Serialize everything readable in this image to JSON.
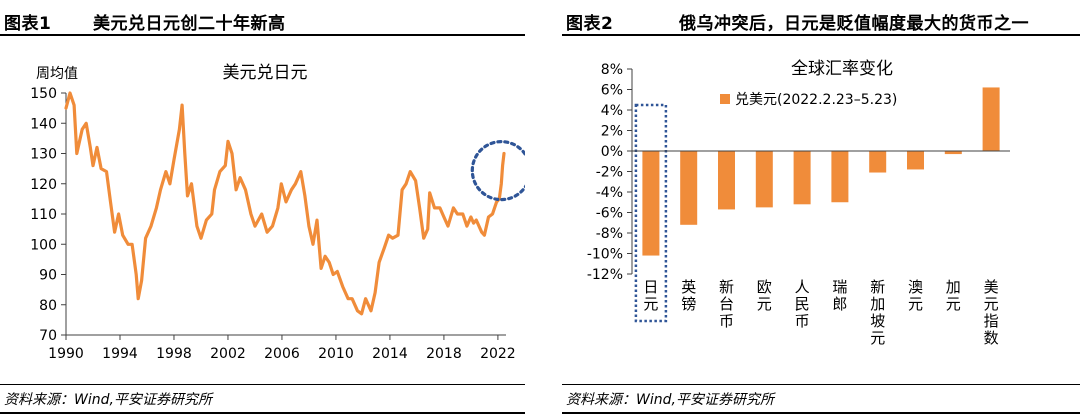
{
  "panel1": {
    "label": "图表1",
    "title": "美元兑日元创二十年新高",
    "source": "资料来源：Wind,平安证券研究所"
  },
  "panel2": {
    "label": "图表2",
    "title": "俄乌冲突后，日元是贬值幅度最大的货币之一",
    "source": "资料来源：Wind,平安证券研究所"
  },
  "colors": {
    "series": "#f08c3a",
    "highlight": "#2f5597",
    "axis": "#404040",
    "text": "#000000"
  },
  "chart_data": [
    {
      "type": "line",
      "title": "美元兑日元",
      "ylabel": "周均值",
      "xlabel": "",
      "xlim": [
        1990,
        2022.6
      ],
      "ylim": [
        70,
        150
      ],
      "xticks": [
        "1990",
        "1994",
        "1998",
        "2002",
        "2006",
        "2010",
        "2014",
        "2018",
        "2022"
      ],
      "yticks": [
        "70",
        "80",
        "90",
        "100",
        "110",
        "120",
        "130",
        "140",
        "150"
      ],
      "grid": false,
      "annotation": {
        "type": "dotted-circle",
        "x": 2022.4,
        "y": 126
      },
      "series": [
        {
          "points": [
            [
              1990.0,
              145
            ],
            [
              1990.3,
              150
            ],
            [
              1990.6,
              146
            ],
            [
              1990.8,
              130
            ],
            [
              1991.0,
              134
            ],
            [
              1991.2,
              138
            ],
            [
              1991.5,
              140
            ],
            [
              1991.8,
              132
            ],
            [
              1992.0,
              126
            ],
            [
              1992.3,
              132
            ],
            [
              1992.6,
              125
            ],
            [
              1993.0,
              124
            ],
            [
              1993.3,
              114
            ],
            [
              1993.6,
              104
            ],
            [
              1993.9,
              110
            ],
            [
              1994.2,
              103
            ],
            [
              1994.6,
              100
            ],
            [
              1994.9,
              100
            ],
            [
              1995.2,
              90
            ],
            [
              1995.35,
              82
            ],
            [
              1995.6,
              88
            ],
            [
              1995.9,
              102
            ],
            [
              1996.3,
              106
            ],
            [
              1996.7,
              112
            ],
            [
              1997.0,
              118
            ],
            [
              1997.4,
              124
            ],
            [
              1997.7,
              120
            ],
            [
              1998.0,
              128
            ],
            [
              1998.4,
              138
            ],
            [
              1998.6,
              146
            ],
            [
              1998.8,
              130
            ],
            [
              1999.0,
              116
            ],
            [
              1999.3,
              120
            ],
            [
              1999.7,
              106
            ],
            [
              2000.0,
              102
            ],
            [
              2000.4,
              108
            ],
            [
              2000.8,
              110
            ],
            [
              2001.0,
              118
            ],
            [
              2001.4,
              124
            ],
            [
              2001.8,
              126
            ],
            [
              2002.0,
              134
            ],
            [
              2002.3,
              130
            ],
            [
              2002.6,
              118
            ],
            [
              2002.9,
              122
            ],
            [
              2003.3,
              118
            ],
            [
              2003.7,
              110
            ],
            [
              2004.0,
              106
            ],
            [
              2004.5,
              110
            ],
            [
              2004.9,
              104
            ],
            [
              2005.3,
              106
            ],
            [
              2005.7,
              112
            ],
            [
              2005.95,
              120
            ],
            [
              2006.3,
              114
            ],
            [
              2006.7,
              118
            ],
            [
              2007.0,
              120
            ],
            [
              2007.4,
              124
            ],
            [
              2007.7,
              116
            ],
            [
              2008.0,
              106
            ],
            [
              2008.3,
              100
            ],
            [
              2008.6,
              108
            ],
            [
              2008.9,
              92
            ],
            [
              2009.2,
              96
            ],
            [
              2009.5,
              94
            ],
            [
              2009.8,
              90
            ],
            [
              2010.1,
              91
            ],
            [
              2010.5,
              86
            ],
            [
              2010.9,
              82
            ],
            [
              2011.2,
              82
            ],
            [
              2011.6,
              78
            ],
            [
              2011.9,
              77
            ],
            [
              2012.2,
              82
            ],
            [
              2012.6,
              78
            ],
            [
              2012.9,
              84
            ],
            [
              2013.2,
              94
            ],
            [
              2013.6,
              99
            ],
            [
              2013.9,
              103
            ],
            [
              2014.2,
              102
            ],
            [
              2014.6,
              103
            ],
            [
              2014.9,
              118
            ],
            [
              2015.2,
              120
            ],
            [
              2015.5,
              124
            ],
            [
              2015.9,
              121
            ],
            [
              2016.2,
              112
            ],
            [
              2016.5,
              102
            ],
            [
              2016.8,
              105
            ],
            [
              2016.95,
              117
            ],
            [
              2017.3,
              112
            ],
            [
              2017.7,
              112
            ],
            [
              2018.0,
              109
            ],
            [
              2018.3,
              106
            ],
            [
              2018.7,
              112
            ],
            [
              2019.0,
              110
            ],
            [
              2019.4,
              110
            ],
            [
              2019.7,
              106
            ],
            [
              2020.0,
              109
            ],
            [
              2020.2,
              107
            ],
            [
              2020.4,
              108
            ],
            [
              2020.8,
              104
            ],
            [
              2021.0,
              103
            ],
            [
              2021.3,
              109
            ],
            [
              2021.6,
              110
            ],
            [
              2021.9,
              114
            ],
            [
              2022.1,
              115
            ],
            [
              2022.25,
              120
            ],
            [
              2022.35,
              126
            ],
            [
              2022.45,
              130
            ]
          ]
        }
      ]
    },
    {
      "type": "bar",
      "title": "全球汇率变化",
      "xlabel": "",
      "ylabel": "",
      "ylim": [
        -12,
        8
      ],
      "yticks": [
        "-12%",
        "-10%",
        "-8%",
        "-6%",
        "-4%",
        "-2%",
        "0%",
        "2%",
        "4%",
        "6%",
        "8%"
      ],
      "grid": false,
      "legend": {
        "position": "top-center"
      },
      "highlight_category": "日元",
      "categories": [
        "日元",
        "英镑",
        "新台币",
        "欧元",
        "人民币",
        "瑞郎",
        "新加坡元",
        "澳元",
        "加元",
        "美元指数"
      ],
      "series": [
        {
          "name": "兑美元(2022.2.23–5.23)",
          "values": [
            -10.2,
            -7.2,
            -5.7,
            -5.5,
            -5.2,
            -5.0,
            -2.1,
            -1.8,
            -0.3,
            6.2
          ]
        }
      ]
    }
  ]
}
